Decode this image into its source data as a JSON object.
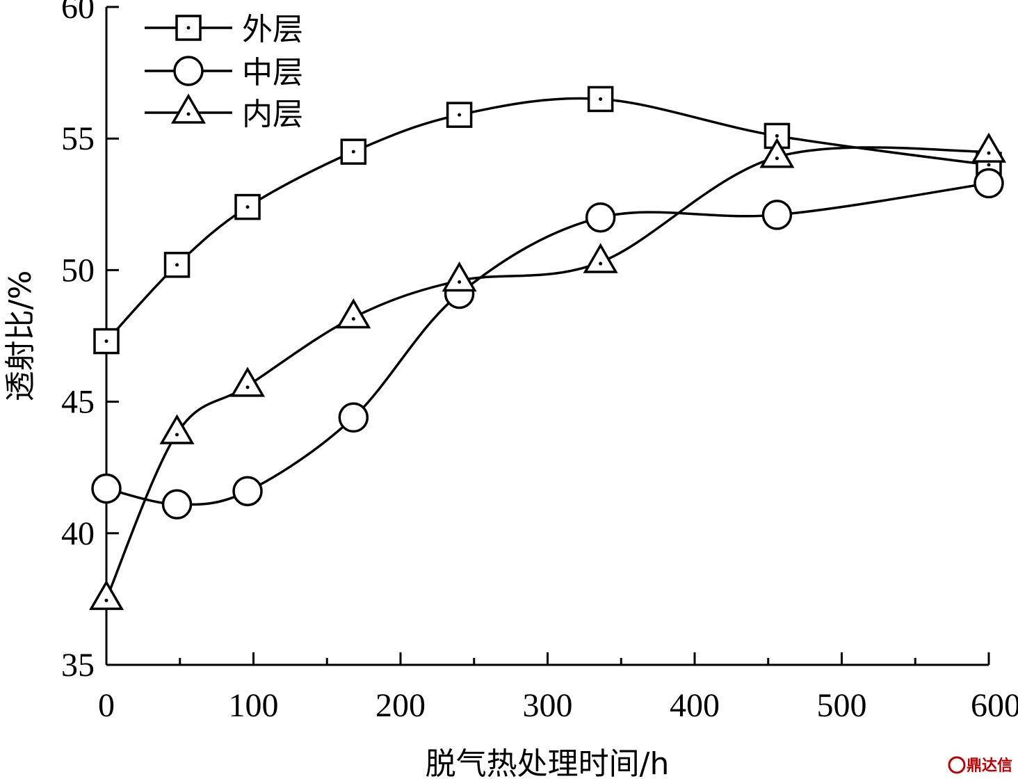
{
  "chart_data": {
    "type": "line",
    "xlabel": "脱气热处理时间/h",
    "ylabel": "透射比/%",
    "xlim": [
      0,
      600
    ],
    "ylim": [
      35,
      60
    ],
    "xticks": [
      "0",
      "100",
      "200",
      "300",
      "400",
      "500",
      "600"
    ],
    "yticks": [
      "35",
      "40",
      "45",
      "50",
      "55",
      "60"
    ],
    "grid": false,
    "legend_position": "top-left",
    "x": [
      0,
      48,
      96,
      168,
      240,
      336,
      456,
      600
    ],
    "series": [
      {
        "name": "外层",
        "marker": "square",
        "values": [
          47.3,
          50.2,
          52.4,
          54.5,
          55.9,
          56.5,
          55.1,
          54.0
        ]
      },
      {
        "name": "中层",
        "marker": "circle",
        "values": [
          41.7,
          41.1,
          41.6,
          44.4,
          49.1,
          52.0,
          52.1,
          53.3
        ]
      },
      {
        "name": "内层",
        "marker": "triangle",
        "values": [
          37.5,
          43.8,
          45.6,
          48.2,
          49.6,
          50.3,
          54.3,
          54.5
        ]
      }
    ],
    "line_color": "#000000"
  },
  "watermark": {
    "text": "鼎达信",
    "color": "#c00000"
  }
}
